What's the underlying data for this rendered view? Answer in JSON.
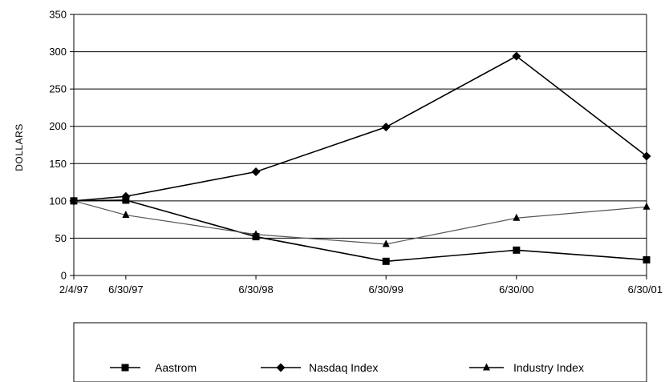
{
  "chart_data": {
    "type": "line",
    "title": "",
    "xlabel": "",
    "ylabel": "DOLLARS",
    "categories": [
      "2/4/97",
      "6/30/97",
      "6/30/98",
      "6/30/99",
      "6/30/00",
      "6/30/01"
    ],
    "x_dates": [
      "1997-02-04",
      "1997-06-30",
      "1998-06-30",
      "1999-06-30",
      "2000-06-30",
      "2001-06-30"
    ],
    "ylim": [
      0,
      350
    ],
    "yticks": [
      0,
      50,
      100,
      150,
      200,
      250,
      300,
      350
    ],
    "grid": "horizontal",
    "legend_position": "bottom",
    "series": [
      {
        "name": "Aastrom",
        "marker": "square",
        "color": "#000000",
        "values": [
          100,
          101,
          52,
          19,
          34,
          21
        ]
      },
      {
        "name": "Nasdaq Index",
        "marker": "diamond",
        "color": "#000000",
        "values": [
          100,
          106,
          139,
          199,
          294,
          160
        ]
      },
      {
        "name": "Industry Index",
        "marker": "triangle",
        "color": "#555555",
        "values": [
          100,
          81,
          55,
          42,
          77,
          92
        ]
      }
    ]
  }
}
